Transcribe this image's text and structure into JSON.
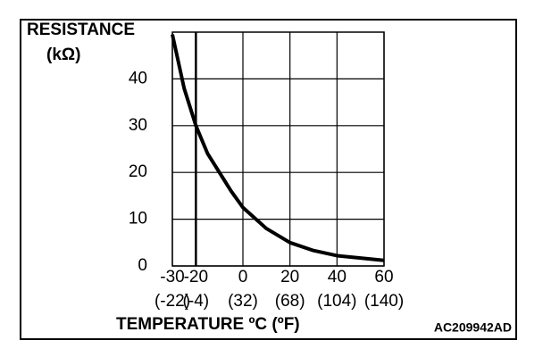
{
  "chart_data": {
    "type": "line",
    "y_label_line1": "RESISTANCE",
    "y_label_line2": "(kΩ)",
    "x_label": "TEMPERATURE ºC (ºF)",
    "figure_code": "AC209942AD",
    "x": [
      -30,
      -25,
      -20,
      -15,
      -10,
      -5,
      0,
      10,
      20,
      30,
      40,
      50,
      60
    ],
    "series": [
      {
        "color": "#000000",
        "values": [
          49.5,
          38,
          30,
          24,
          20,
          16,
          12.5,
          8,
          5,
          3.3,
          2.2,
          1.7,
          1.2
        ]
      }
    ],
    "xlim": [
      -30,
      60
    ],
    "xticks": [
      -30,
      -20,
      0,
      20,
      40,
      60
    ],
    "fahrenheit_labels": [
      "(-22)",
      "(-4)",
      "(32)",
      "(68)",
      "(104)",
      "(140)"
    ],
    "ylim": [
      0,
      50
    ],
    "yticks": [
      0,
      10,
      20,
      30,
      40
    ],
    "grid": true
  }
}
